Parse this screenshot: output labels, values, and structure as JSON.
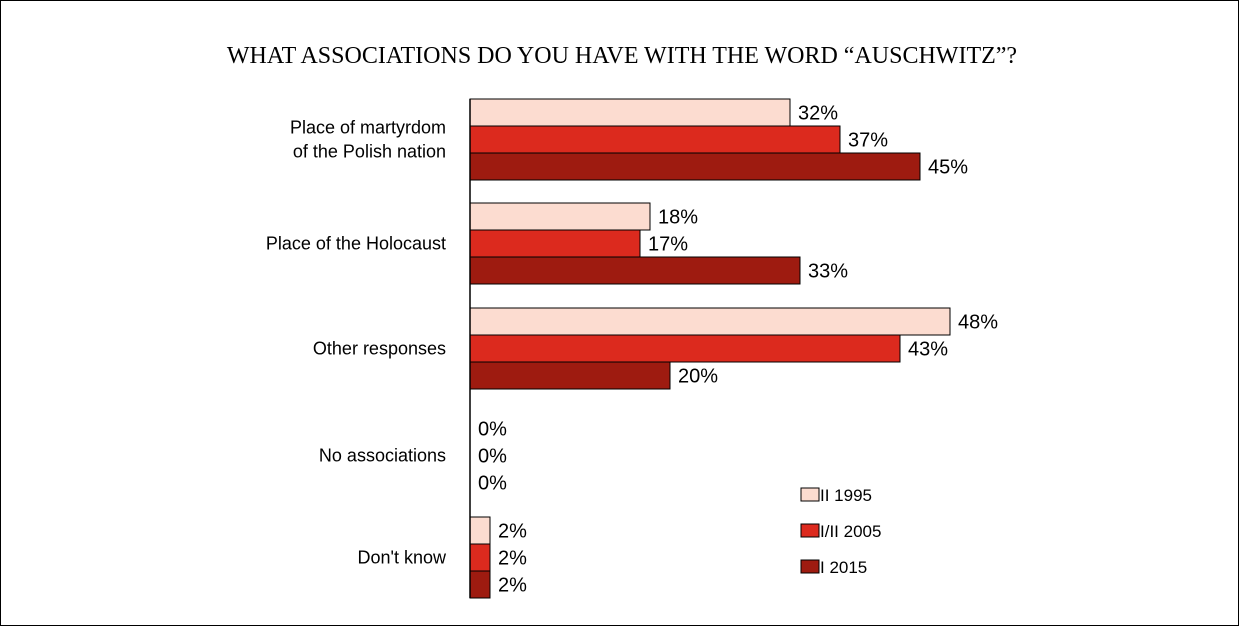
{
  "chart_data": {
    "type": "bar",
    "orientation": "horizontal",
    "title": "WHAT ASSOCIATIONS DO YOU HAVE WITH THE WORD “AUSCHWITZ”?",
    "categories": [
      [
        "Place of martyrdom",
        "of the Polish nation"
      ],
      [
        "Place of the Holocaust"
      ],
      [
        "Other responses"
      ],
      [
        "No associations"
      ],
      [
        "Don't know"
      ]
    ],
    "series": [
      {
        "name": "II 1995",
        "color": "#fcdcd0",
        "values": [
          32,
          18,
          48,
          0,
          2
        ],
        "labels": [
          "32%",
          "18%",
          "48%",
          "0%",
          "2%"
        ]
      },
      {
        "name": "I/II 2005",
        "color": "#dc2a1e",
        "values": [
          37,
          17,
          43,
          0,
          2
        ],
        "labels": [
          "37%",
          "17%",
          "43%",
          "0%",
          "2%"
        ]
      },
      {
        "name": "I 2015",
        "color": "#9e1b10",
        "values": [
          45,
          33,
          20,
          0,
          2
        ],
        "labels": [
          "45%",
          "33%",
          "20%",
          "0%",
          "2%"
        ]
      }
    ],
    "xlabel": "",
    "ylabel": "",
    "xlim": [
      0,
      48
    ],
    "grid": false,
    "legend_position": "bottom-right"
  }
}
